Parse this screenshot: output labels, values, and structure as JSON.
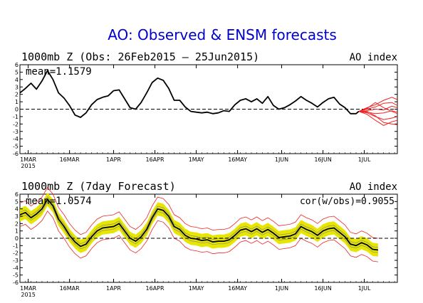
{
  "title": "AO: Observed & ENSM forecasts",
  "colors": {
    "title": "#0000cc",
    "observed": "#000000",
    "forecast_members": "#ee2222",
    "spread_band": "#e6e600",
    "zero_line": "#000000"
  },
  "chart_data": [
    {
      "type": "line",
      "panel_label": "1000mb Z (Obs: 26Feb2015 – 25Jun2015)",
      "index_label": "AO index",
      "stat_label": "mean=1.1579",
      "x_tick_labels": [
        "1MAR\n2015",
        "16MAR",
        "1APR",
        "16APR",
        "1MAY",
        "16MAY",
        "1JUN",
        "16JUN",
        "1JUL"
      ],
      "x_tick_day": [
        3,
        18,
        34,
        49,
        64,
        79,
        95,
        110,
        125
      ],
      "xlim": [
        0,
        137
      ],
      "ylim": [
        -6,
        6
      ],
      "y_ticks": [
        6,
        5,
        4,
        3,
        2,
        1,
        0,
        -1,
        -2,
        -3,
        -4,
        -5,
        -6
      ],
      "series": [
        {
          "role": "observed",
          "points": [
            [
              0,
              2.2
            ],
            [
              2,
              2.8
            ],
            [
              4,
              3.5
            ],
            [
              6,
              2.7
            ],
            [
              8,
              3.8
            ],
            [
              10,
              5.2
            ],
            [
              12,
              4.0
            ],
            [
              14,
              2.2
            ],
            [
              16,
              1.5
            ],
            [
              18,
              0.5
            ],
            [
              20,
              -0.8
            ],
            [
              22,
              -1.1
            ],
            [
              24,
              -0.5
            ],
            [
              26,
              0.6
            ],
            [
              28,
              1.3
            ],
            [
              30,
              1.6
            ],
            [
              32,
              1.8
            ],
            [
              34,
              2.5
            ],
            [
              36,
              2.6
            ],
            [
              38,
              1.4
            ],
            [
              40,
              0.2
            ],
            [
              42,
              0.0
            ],
            [
              44,
              0.9
            ],
            [
              46,
              2.2
            ],
            [
              48,
              3.6
            ],
            [
              50,
              4.2
            ],
            [
              52,
              3.9
            ],
            [
              54,
              2.8
            ],
            [
              56,
              1.2
            ],
            [
              58,
              1.2
            ],
            [
              60,
              0.3
            ],
            [
              62,
              -0.3
            ],
            [
              64,
              -0.4
            ],
            [
              66,
              -0.5
            ],
            [
              68,
              -0.4
            ],
            [
              70,
              -0.6
            ],
            [
              72,
              -0.5
            ],
            [
              74,
              -0.2
            ],
            [
              76,
              -0.3
            ],
            [
              78,
              0.6
            ],
            [
              80,
              1.2
            ],
            [
              82,
              1.4
            ],
            [
              84,
              1.0
            ],
            [
              86,
              1.4
            ],
            [
              88,
              0.8
            ],
            [
              90,
              1.7
            ],
            [
              92,
              0.5
            ],
            [
              94,
              0.0
            ],
            [
              96,
              0.2
            ],
            [
              98,
              0.6
            ],
            [
              100,
              1.1
            ],
            [
              102,
              1.7
            ],
            [
              104,
              1.2
            ],
            [
              106,
              0.8
            ],
            [
              108,
              0.3
            ],
            [
              110,
              0.9
            ],
            [
              112,
              1.4
            ],
            [
              114,
              1.6
            ],
            [
              116,
              0.7
            ],
            [
              118,
              0.2
            ],
            [
              120,
              -0.6
            ],
            [
              122,
              -0.6
            ],
            [
              123,
              -0.3
            ]
          ]
        }
      ],
      "forecast_members": [
        [
          [
            123,
            -0.3
          ],
          [
            126,
            0.2
          ],
          [
            129,
            0.6
          ],
          [
            132,
            1.2
          ],
          [
            135,
            1.6
          ],
          [
            137,
            1.3
          ]
        ],
        [
          [
            123,
            -0.3
          ],
          [
            126,
            0.0
          ],
          [
            129,
            0.3
          ],
          [
            132,
            0.8
          ],
          [
            135,
            0.9
          ],
          [
            137,
            0.5
          ]
        ],
        [
          [
            123,
            -0.3
          ],
          [
            126,
            -0.2
          ],
          [
            129,
            0.0
          ],
          [
            132,
            -0.1
          ],
          [
            135,
            0.4
          ],
          [
            137,
            0.2
          ]
        ],
        [
          [
            123,
            -0.3
          ],
          [
            126,
            -0.4
          ],
          [
            129,
            -0.6
          ],
          [
            132,
            -0.5
          ],
          [
            135,
            -0.2
          ],
          [
            137,
            -0.4
          ]
        ],
        [
          [
            123,
            -0.3
          ],
          [
            126,
            -0.5
          ],
          [
            129,
            -1.0
          ],
          [
            132,
            -1.4
          ],
          [
            135,
            -1.2
          ],
          [
            137,
            -1.0
          ]
        ],
        [
          [
            123,
            -0.3
          ],
          [
            126,
            -0.7
          ],
          [
            129,
            -1.5
          ],
          [
            132,
            -2.2
          ],
          [
            135,
            -1.7
          ],
          [
            137,
            -1.5
          ]
        ],
        [
          [
            123,
            -0.3
          ],
          [
            126,
            -0.3
          ],
          [
            129,
            -0.9
          ],
          [
            132,
            -1.8
          ],
          [
            135,
            -2.0
          ],
          [
            137,
            -2.1
          ]
        ],
        [
          [
            123,
            -0.3
          ],
          [
            126,
            0.1
          ],
          [
            129,
            0.9
          ],
          [
            132,
            0.2
          ],
          [
            135,
            -0.3
          ],
          [
            137,
            -0.6
          ]
        ]
      ]
    },
    {
      "type": "line",
      "panel_label": "1000mb Z (7day Forecast)",
      "index_label": "AO index",
      "stat_label": "mean=1.0574",
      "corr_label": "cor(w/obs)=0.9055",
      "x_tick_labels": [
        "1MAR\n2015",
        "16MAR",
        "1APR",
        "16APR",
        "1MAY",
        "16MAY",
        "1JUN",
        "16JUN",
        "1JUL"
      ],
      "x_tick_day": [
        3,
        18,
        34,
        49,
        64,
        79,
        95,
        110,
        125
      ],
      "xlim": [
        0,
        137
      ],
      "ylim": [
        -6,
        6
      ],
      "y_ticks": [
        6,
        5,
        4,
        3,
        2,
        1,
        0,
        -1,
        -2,
        -3,
        -4,
        -5,
        -6
      ],
      "series": [
        {
          "role": "ensemble_mean",
          "points": [
            [
              0,
              3.2
            ],
            [
              2,
              3.5
            ],
            [
              4,
              2.8
            ],
            [
              6,
              3.3
            ],
            [
              8,
              4.0
            ],
            [
              10,
              5.3
            ],
            [
              12,
              4.4
            ],
            [
              14,
              2.6
            ],
            [
              16,
              1.6
            ],
            [
              18,
              0.4
            ],
            [
              20,
              -0.5
            ],
            [
              22,
              -1.1
            ],
            [
              24,
              -0.8
            ],
            [
              26,
              0.2
            ],
            [
              28,
              1.0
            ],
            [
              30,
              1.4
            ],
            [
              32,
              1.5
            ],
            [
              34,
              1.6
            ],
            [
              36,
              2.0
            ],
            [
              38,
              1.0
            ],
            [
              40,
              0.0
            ],
            [
              42,
              -0.4
            ],
            [
              44,
              0.2
            ],
            [
              46,
              1.2
            ],
            [
              48,
              2.8
            ],
            [
              50,
              4.0
            ],
            [
              52,
              3.8
            ],
            [
              54,
              3.0
            ],
            [
              56,
              1.6
            ],
            [
              58,
              1.2
            ],
            [
              60,
              0.4
            ],
            [
              62,
              0.0
            ],
            [
              64,
              -0.1
            ],
            [
              66,
              -0.3
            ],
            [
              68,
              -0.2
            ],
            [
              70,
              -0.5
            ],
            [
              72,
              -0.4
            ],
            [
              74,
              -0.4
            ],
            [
              76,
              -0.2
            ],
            [
              78,
              0.4
            ],
            [
              80,
              1.1
            ],
            [
              82,
              1.3
            ],
            [
              84,
              0.9
            ],
            [
              86,
              1.3
            ],
            [
              88,
              0.8
            ],
            [
              90,
              1.2
            ],
            [
              92,
              0.7
            ],
            [
              94,
              0.1
            ],
            [
              96,
              0.2
            ],
            [
              98,
              0.3
            ],
            [
              100,
              0.6
            ],
            [
              102,
              1.6
            ],
            [
              104,
              1.2
            ],
            [
              106,
              0.9
            ],
            [
              108,
              0.4
            ],
            [
              110,
              1.0
            ],
            [
              112,
              1.3
            ],
            [
              114,
              1.4
            ],
            [
              116,
              0.8
            ],
            [
              118,
              0.2
            ],
            [
              120,
              -0.8
            ],
            [
              122,
              -1.0
            ],
            [
              124,
              -0.6
            ],
            [
              126,
              -0.9
            ],
            [
              128,
              -1.5
            ],
            [
              130,
              -1.6
            ]
          ]
        }
      ],
      "spread_half_width": 0.9,
      "envelope_half_width": 1.6
    }
  ]
}
